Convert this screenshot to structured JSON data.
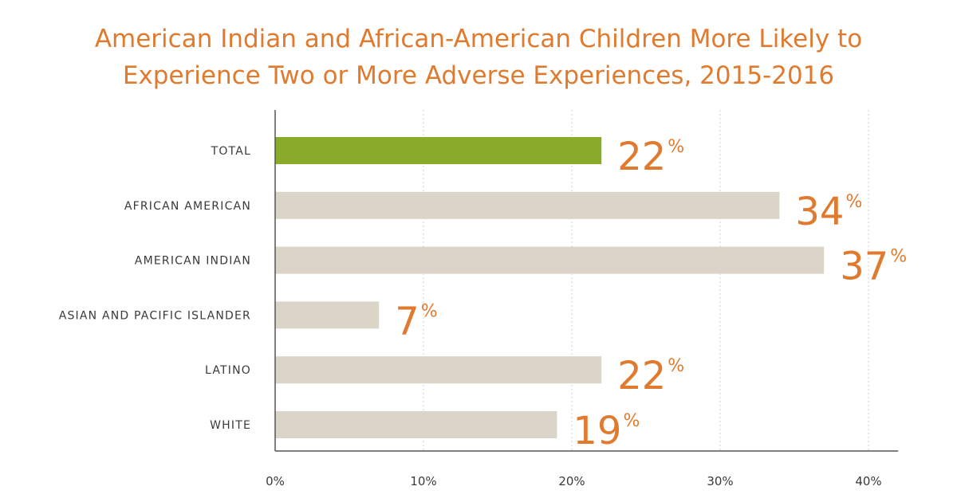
{
  "chart_data": {
    "type": "bar",
    "orientation": "horizontal",
    "title": "American Indian and African-American Children More Likely to Experience Two or More Adverse Experiences, 2015-2016",
    "title_lines": [
      "American Indian and African-American Children More Likely to",
      "Experience Two or More Adverse Experiences, 2015-2016"
    ],
    "categories": [
      "TOTAL",
      "AFRICAN AMERICAN",
      "AMERICAN INDIAN",
      "ASIAN AND PACIFIC ISLANDER",
      "LATINO",
      "WHITE"
    ],
    "values": [
      22,
      34,
      37,
      7,
      22,
      19
    ],
    "value_labels": [
      "22",
      "34",
      "37",
      "7",
      "22",
      "19"
    ],
    "value_suffix": "%",
    "xlim": [
      0,
      42
    ],
    "ticks": [
      0,
      10,
      20,
      30,
      40
    ],
    "tick_labels": [
      "0%",
      "10%",
      "20%",
      "30%",
      "40%"
    ],
    "xlabel": "",
    "ylabel": "",
    "grid": "vertical dotted",
    "colors": {
      "highlight": "#8aab2a",
      "bar": "#dbd5c9",
      "value_text": "#e07a2e",
      "title": "#e07a2e",
      "grid": "#cfcfcf",
      "axis": "#555555"
    }
  }
}
